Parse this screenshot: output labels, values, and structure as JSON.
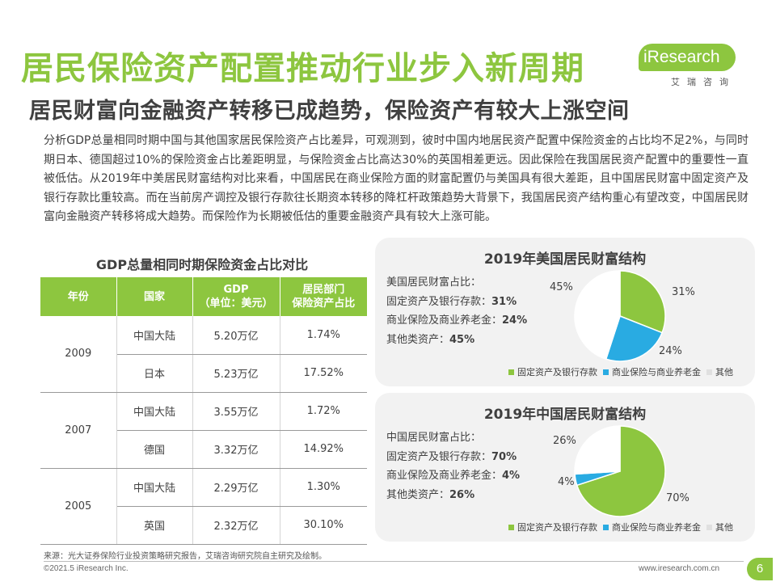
{
  "header": {
    "title": "居民保险资产配置推动行业步入新周期",
    "subtitle": "居民财富向金融资产转移已成趋势，保险资产有较大上涨空间",
    "logo_brand": "iResearch",
    "logo_cn": "艾瑞咨询"
  },
  "body_text": "分析GDP总量相同时期中国与其他国家居民保险资产占比差异，可观测到，彼时中国内地居民资产配置中保险资金的占比均不足2%，与同时期日本、德国超过10%的保险资金占比差距明显，与保险资金占比高达30%的英国相差更远。因此保险在我国居民资产配置中的重要性一直被低估。从2019年中美居民财富结构对比来看，中国居民在商业保险方面的财富配置仍与美国具有很大差距，且中国居民财富中固定资产及银行存款比重较高。而在当前房产调控及银行存款往长期资本转移的降杠杆政策趋势大背景下，我国居民资产结构重心有望改变，中国居民财富向金融资产转移将成大趋势。而保险作为长期被低估的重要金融资产具有较大上涨可能。",
  "table": {
    "title": "GDP总量相同时期保险资金占比对比",
    "headers": [
      "年份",
      "国家",
      "GDP",
      "（单位：美元）",
      "居民部门",
      "保险资产占比"
    ],
    "groups": [
      {
        "year": "2009",
        "rows": [
          {
            "country": "中国大陆",
            "gdp": "5.20万亿",
            "ratio": "1.74%"
          },
          {
            "country": "日本",
            "gdp": "5.23万亿",
            "ratio": "17.52%"
          }
        ]
      },
      {
        "year": "2007",
        "rows": [
          {
            "country": "中国大陆",
            "gdp": "3.55万亿",
            "ratio": "1.72%"
          },
          {
            "country": "德国",
            "gdp": "3.32万亿",
            "ratio": "14.92%"
          }
        ]
      },
      {
        "year": "2005",
        "rows": [
          {
            "country": "中国大陆",
            "gdp": "2.29万亿",
            "ratio": "1.30%"
          },
          {
            "country": "英国",
            "gdp": "2.32万亿",
            "ratio": "30.10%"
          }
        ]
      }
    ]
  },
  "us_panel": {
    "title": "2019年美国居民财富结构",
    "info_title": "美国居民财富占比：",
    "info_lines": [
      {
        "label": "固定资产及银行存款：",
        "value": "31%"
      },
      {
        "label": "商业保险及商业养老金：",
        "value": "24%"
      },
      {
        "label": "其他类资产：",
        "value": "45%"
      }
    ]
  },
  "cn_panel": {
    "title": "2019年中国居民财富结构",
    "info_title": "中国居民财富占比：",
    "info_lines": [
      {
        "label": "固定资产及银行存款：",
        "value": "70%"
      },
      {
        "label": "商业保险及商业养老金：",
        "value": "4%"
      },
      {
        "label": "其他类资产：",
        "value": "26%"
      }
    ]
  },
  "chart_data": [
    {
      "type": "pie",
      "title": "2019年美国居民财富结构",
      "categories": [
        "固定资产及银行存款",
        "商业保险与商业养老金",
        "其他"
      ],
      "values": [
        31,
        24,
        45
      ],
      "labels": [
        "31%",
        "24%",
        "45%"
      ],
      "colors": [
        "#8dc63f",
        "#29abe2",
        "#ffffff"
      ],
      "legend": "bottom"
    },
    {
      "type": "pie",
      "title": "2019年中国居民财富结构",
      "categories": [
        "固定资产及银行存款",
        "商业保险与商业养老金",
        "其他"
      ],
      "values": [
        70,
        4,
        26
      ],
      "labels": [
        "70%",
        "4%",
        "26%"
      ],
      "colors": [
        "#8dc63f",
        "#29abe2",
        "#ffffff"
      ],
      "legend": "bottom"
    }
  ],
  "footer": {
    "source": "来源：光大证券保险行业投资策略研究报告，艾瑞咨询研究院自主研究及绘制。",
    "copyright": "©2021.5 iResearch Inc.",
    "url": "www.iresearch.com.cn",
    "page": "6"
  }
}
